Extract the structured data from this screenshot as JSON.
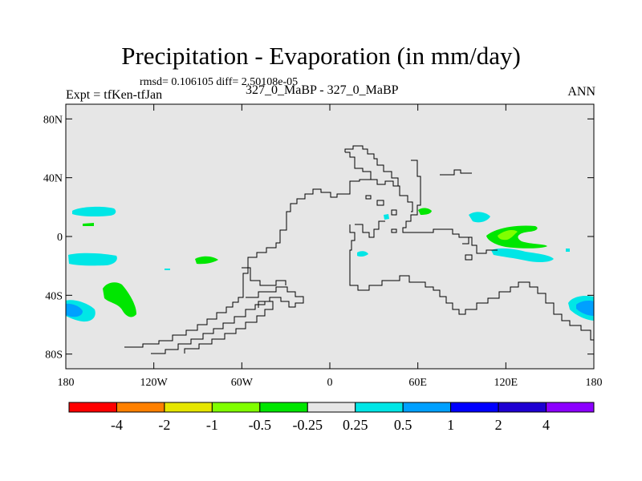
{
  "figure": {
    "title": "Precipitation - Evaporation (in mm/day)",
    "stats": "rmsd= 0.106105 diff= 2.50108e-05",
    "expt": "Expt = tfKen-tfJan",
    "cases": "327_0_MaBP - 327_0_MaBP",
    "season": "ANN"
  },
  "chart_data": {
    "type": "heatmap",
    "title": "Precipitation - Evaporation (in mm/day)",
    "subtitle": "rmsd= 0.106105 diff= 2.50108e-05",
    "projection": "cylindrical equidistant",
    "xlim": [
      -180,
      180
    ],
    "ylim": [
      -90,
      90
    ],
    "x_ticks": [
      -180,
      -120,
      -60,
      0,
      60,
      120,
      180
    ],
    "x_tick_labels": [
      "180",
      "120W",
      "60W",
      "0",
      "60E",
      "120E",
      "180"
    ],
    "y_ticks": [
      80,
      40,
      0,
      -40,
      -80
    ],
    "y_tick_labels": [
      "80N",
      "40N",
      "0",
      "40S",
      "80S"
    ],
    "background_value_range": [
      -0.25,
      0.25
    ],
    "contour_levels": [
      -4,
      -2,
      -1,
      -0.5,
      -0.25,
      0.25,
      0.5,
      1,
      2,
      4
    ],
    "colorbar_labels": [
      "-4",
      "-2",
      "-1",
      "-0.5",
      "-0.25",
      "0.25",
      "0.5",
      "1",
      "2",
      "4"
    ],
    "colorbar_colors": [
      "#ff0000",
      "#ff8000",
      "#e6e600",
      "#80ff00",
      "#00e600",
      "#e6e6e6",
      "#00e6e6",
      "#00a0ff",
      "#0000ff",
      "#1e00d2",
      "#8c00ff"
    ],
    "map_background": "#e6e6e6",
    "anomaly_regions": [
      {
        "category": "0.25 to 0.5",
        "lon": [
          -172,
          -142
        ],
        "lat": [
          15,
          20
        ]
      },
      {
        "category": "-0.5 to -0.25",
        "lon": [
          -167,
          -160
        ],
        "lat": [
          7,
          9
        ]
      },
      {
        "category": "0.25 to 0.5",
        "lon": [
          -175,
          -143
        ],
        "lat": [
          -20,
          -12
        ]
      },
      {
        "category": "-0.5 to -0.25",
        "lon": [
          -150,
          -130
        ],
        "lat": [
          -53,
          -32
        ]
      },
      {
        "category": "0.5 to 1",
        "lon": [
          -180,
          -163
        ],
        "lat": [
          -58,
          -45
        ]
      },
      {
        "category": "-0.5 to -0.25",
        "lon": [
          -93,
          -83
        ],
        "lat": [
          -20,
          -16
        ]
      },
      {
        "category": "0.25 to 0.5",
        "lon": [
          -123,
          -120
        ],
        "lat": [
          -22,
          -21
        ]
      },
      {
        "category": "-0.5 to -0.25",
        "lon": [
          62,
          70
        ],
        "lat": [
          15,
          19
        ]
      },
      {
        "category": "0.25 to 0.5",
        "lon": [
          110,
          123
        ],
        "lat": [
          9,
          16
        ]
      },
      {
        "category": "-0.5 to -0.25",
        "lon": [
          120,
          150
        ],
        "lat": [
          -7,
          9
        ]
      },
      {
        "category": "-1 to -0.5",
        "lon": [
          131,
          143
        ],
        "lat": [
          -2,
          5
        ]
      },
      {
        "category": "0.25 to 0.5",
        "lon": [
          123,
          160
        ],
        "lat": [
          -18,
          -8
        ]
      },
      {
        "category": "0.25 to 0.5",
        "lon": [
          39,
          47
        ],
        "lat": [
          -16,
          -11
        ]
      },
      {
        "category": "0.25 to 0.5",
        "lon": [
          155,
          180
        ],
        "lat": [
          -56,
          -40
        ]
      },
      {
        "category": "0.5 to 1",
        "lon": [
          164,
          180
        ],
        "lat": [
          -55,
          -45
        ]
      }
    ],
    "grid": false,
    "legend_placement": "bottom"
  }
}
